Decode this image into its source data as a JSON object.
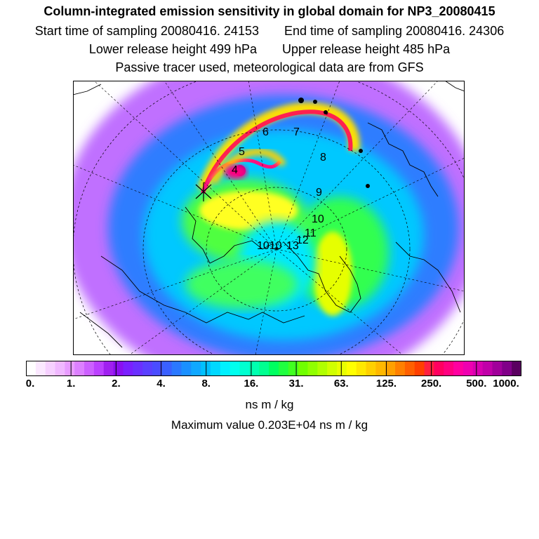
{
  "header": {
    "title": "Column-integrated emission sensitivity in global domain for NP3_20080415",
    "start_time": "Start time of sampling 20080416. 24153",
    "end_time": "End time of sampling 20080416. 24306",
    "lower_release": "Lower release height  499 hPa",
    "upper_release": "Upper release height  485 hPa",
    "tracer_note": "Passive tracer used, meteorological data are from GFS"
  },
  "chart_data": {
    "type": "heatmap",
    "projection": "polar stereographic (north pole)",
    "colorbar": {
      "ticks": [
        "0.",
        "1.",
        "2.",
        "4.",
        "8.",
        "16.",
        "31.",
        "63.",
        "125.",
        "250.",
        "500.",
        "1000."
      ],
      "colors": [
        "#ffffff",
        "#fbe8ff",
        "#f6d0ff",
        "#f0b8ff",
        "#e89cff",
        "#dc80ff",
        "#cc60ff",
        "#bb40ff",
        "#a020f0",
        "#8a10f0",
        "#7a20ff",
        "#6a30ff",
        "#5a40ff",
        "#4a4cff",
        "#3a60ff",
        "#2a78ff",
        "#1a90ff",
        "#10a8ff",
        "#00c0ff",
        "#00d8ff",
        "#00f0ff",
        "#00ffee",
        "#00ffd0",
        "#00ffb0",
        "#00ff90",
        "#00ff60",
        "#20ff40",
        "#40ff20",
        "#70ff00",
        "#90ff00",
        "#b0ff00",
        "#d0ff00",
        "#e8ff00",
        "#ffff00",
        "#ffe800",
        "#ffd000",
        "#ffb800",
        "#ffa000",
        "#ff8000",
        "#ff6000",
        "#ff4000",
        "#ff2040",
        "#ff0060",
        "#ff0080",
        "#ff00a0",
        "#ee00b0",
        "#d800b0",
        "#c000a8",
        "#a0009a",
        "#800088",
        "#5a0060"
      ],
      "units": "ns m / kg"
    },
    "track_labels": [
      "4",
      "5",
      "6",
      "7",
      "8",
      "9",
      "10",
      "11",
      "12",
      "13",
      "1010"
    ],
    "max_value": "Maximum value  0.203E+04 ns m / kg"
  }
}
